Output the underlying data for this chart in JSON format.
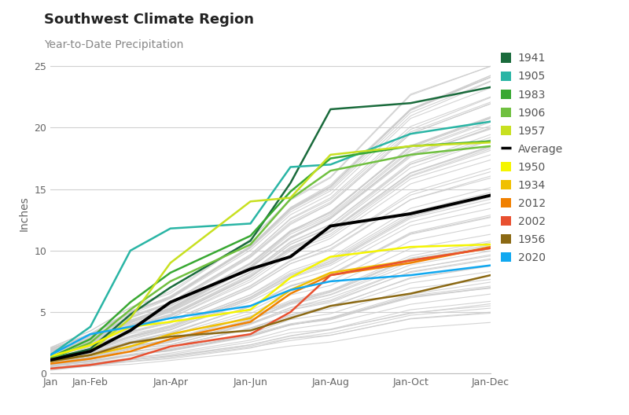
{
  "title": "Southwest Climate Region",
  "subtitle": "Year-to-Date Precipitation",
  "ylabel": "Inches",
  "xlim": [
    0,
    11
  ],
  "ylim": [
    0,
    26
  ],
  "yticks": [
    0,
    5,
    10,
    15,
    20,
    25
  ],
  "xtick_labels": [
    "Jan",
    "Jan-Feb",
    "Jan-Apr",
    "Jan-Jun",
    "Jan-Aug",
    "Jan-Oct",
    "Jan-Dec"
  ],
  "xtick_positions": [
    0,
    1,
    3,
    5,
    7,
    9,
    11
  ],
  "background_color": "#ffffff",
  "grid_color": "#d0d0d0",
  "highlighted_years": {
    "1941": {
      "color": "#1a6b3c",
      "data": [
        1.2,
        2.0,
        4.8,
        7.0,
        10.8,
        15.5,
        21.5,
        22.0,
        23.3
      ]
    },
    "1905": {
      "color": "#2ab5a5",
      "data": [
        1.5,
        3.8,
        10.0,
        11.8,
        12.2,
        16.8,
        17.0,
        19.5,
        20.5
      ]
    },
    "1983": {
      "color": "#38a832",
      "data": [
        1.3,
        2.8,
        5.8,
        8.2,
        11.2,
        14.8,
        17.5,
        18.5,
        18.9
      ]
    },
    "1906": {
      "color": "#70c040",
      "data": [
        1.2,
        2.5,
        5.2,
        7.5,
        10.5,
        14.2,
        16.5,
        17.8,
        18.5
      ]
    },
    "1957": {
      "color": "#c8e020",
      "data": [
        1.0,
        1.8,
        4.5,
        9.0,
        14.0,
        14.3,
        17.8,
        18.5,
        18.8
      ]
    },
    "Average": {
      "color": "#000000",
      "data": [
        1.1,
        1.8,
        3.5,
        5.8,
        8.5,
        9.5,
        12.0,
        13.0,
        14.5
      ],
      "lw": 2.8
    },
    "1950": {
      "color": "#f5f500",
      "data": [
        1.4,
        2.3,
        3.8,
        4.2,
        5.2,
        7.8,
        9.5,
        10.3,
        10.5
      ]
    },
    "1934": {
      "color": "#f0c000",
      "data": [
        1.0,
        1.5,
        2.2,
        3.2,
        4.5,
        6.8,
        8.2,
        9.2,
        10.2
      ]
    },
    "2012": {
      "color": "#f08000",
      "data": [
        0.8,
        1.2,
        1.8,
        2.8,
        4.2,
        6.5,
        8.0,
        9.0,
        10.3
      ]
    },
    "2002": {
      "color": "#e85030",
      "data": [
        0.4,
        0.7,
        1.2,
        2.2,
        3.2,
        5.0,
        8.0,
        9.2,
        10.2
      ]
    },
    "1956": {
      "color": "#8B6914",
      "data": [
        1.0,
        1.5,
        2.5,
        3.0,
        3.5,
        4.5,
        5.5,
        6.5,
        8.0
      ]
    },
    "2020": {
      "color": "#10a8f0",
      "data": [
        1.5,
        3.2,
        3.8,
        4.5,
        5.5,
        6.8,
        7.5,
        8.0,
        8.8
      ]
    }
  },
  "gray_line_color": "#cccccc",
  "num_gray_lines": 80,
  "title_fontsize": 13,
  "subtitle_fontsize": 10,
  "axis_label_fontsize": 10,
  "tick_fontsize": 9,
  "legend_fontsize": 10
}
